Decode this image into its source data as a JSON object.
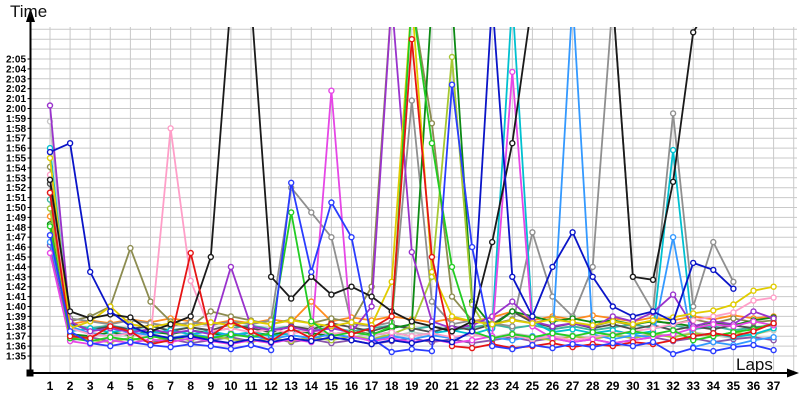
{
  "page": {
    "y_axis_title": "Time",
    "x_axis_title": "Laps"
  },
  "chart_data": {
    "type": "line",
    "title": "",
    "xlabel": "Laps",
    "ylabel": "Time",
    "grid": true,
    "legend": "none",
    "marker": "open-circle",
    "x": [
      1,
      2,
      3,
      4,
      5,
      6,
      7,
      8,
      9,
      10,
      11,
      12,
      13,
      14,
      15,
      16,
      17,
      18,
      19,
      20,
      21,
      22,
      23,
      24,
      25,
      26,
      27,
      28,
      29,
      30,
      31,
      32,
      33,
      34,
      35,
      36,
      37
    ],
    "y_tick_labels": [
      "2:05",
      "2:04",
      "2:03",
      "2:02",
      "2:01",
      "2:00",
      "1:59",
      "1:58",
      "1:57",
      "1:56",
      "1:55",
      "1:54",
      "1:53",
      "1:52",
      "1:51",
      "1:50",
      "1:49",
      "1:48",
      "1:47",
      "1:46",
      "1:45",
      "1:44",
      "1:43",
      "1:42",
      "1:41",
      "1:40",
      "1:39",
      "1:38",
      "1:37",
      "1:36",
      "1:35"
    ],
    "y_top_tick_seconds": 125,
    "y_bottom_tick_seconds": 95,
    "offscale_value": 131,
    "offscale_meaning": "line exits above visible plot area (slower than ~2:08)",
    "values_unit": "seconds (95 = 1:35, 125 = 2:05)",
    "series": [
      {
        "name": "silver",
        "color": "#c6c6c6",
        "values": [
          118.7,
          97.8,
          97.4,
          97,
          97.4,
          97.1,
          97.5,
          97.2,
          96.9,
          97.3,
          97,
          97.4,
          97.1,
          96.8,
          97.2,
          96.9,
          97.3,
          97,
          97.4,
          97.1,
          96.8,
          97.2,
          96.9,
          97.3,
          97,
          96.7,
          97.1,
          96.8,
          97.2,
          96.9,
          97.3,
          97,
          97.4,
          97.1,
          96.8,
          97.2,
          97.6
        ]
      },
      {
        "name": "teal",
        "color": "#3cb4a0",
        "values": [
          110.8,
          98.2,
          97.8,
          98.1,
          97.7,
          98,
          97.6,
          97.9,
          97.5,
          97.8,
          98.1,
          97.7,
          98,
          97.6,
          97.9,
          97.5,
          97.8,
          98.1,
          97.7,
          98,
          97.6,
          97.9,
          98.2,
          97.8,
          98.1,
          97.7,
          98,
          97.6,
          97.9,
          98.2,
          97.8,
          98.1,
          97.7,
          98,
          97.6,
          97.9,
          98.1
        ]
      },
      {
        "name": "orange",
        "color": "#ff8c1e",
        "values": [
          109.1,
          98.2,
          98.6,
          98.3,
          98.7,
          98.4,
          98.8,
          98.5,
          98.2,
          98.6,
          98.3,
          98.7,
          98.4,
          100.5,
          98.5,
          98.9,
          98.6,
          99,
          98.7,
          98.4,
          98.8,
          98.5,
          98.9,
          99.5,
          98.6,
          99,
          98.7,
          99.1,
          98.8,
          98.5,
          98.9,
          98.6,
          99,
          98.7,
          99.1,
          98.8,
          99
        ]
      },
      {
        "name": "plum",
        "color": "#8a55aa",
        "values": [
          106.2,
          96.6,
          96.9,
          96.5,
          96.8,
          96.4,
          96.7,
          96.3,
          96.6,
          96.9,
          96.5,
          96.8,
          96.4,
          96.7,
          96.3,
          96.6,
          96.2,
          96.5,
          96.8,
          96.4,
          96.7,
          96.3,
          96.6,
          96.9,
          96.5,
          96.8,
          96.4,
          96.7,
          96.3,
          96.6,
          96.9,
          96.5,
          96.8,
          96.4,
          96.7,
          96.9,
          96.6
        ]
      },
      {
        "name": "dark-gray",
        "color": "#4d4d4d",
        "values": [
          112.4,
          98.3,
          97.6,
          98,
          97.7,
          98.1,
          97.5,
          97.9,
          97.6,
          98.2,
          97.8,
          97.4,
          98,
          97.7,
          98.3,
          97.9,
          97.5,
          98.1,
          97.8,
          97.4,
          98,
          97.6,
          98.2,
          99.5,
          98.4,
          97.9,
          98.3,
          97.8,
          98.2,
          97.7,
          98.1,
          97.6,
          98,
          97.7,
          98.1,
          97.8,
          98.2
        ]
      },
      {
        "name": "khaki",
        "color": "#8c8c50",
        "values": [
          114.1,
          98.5,
          99,
          100,
          105.9,
          100.5,
          98.5,
          98,
          99.5,
          99,
          98.6,
          98.2,
          98.7,
          98.3,
          98.8,
          98.4,
          102,
          131,
          131,
          118.5,
          101,
          98.6,
          98.2,
          98.7,
          98.3,
          98.8,
          98.4,
          98,
          98.5,
          98.1,
          98.6,
          98.2,
          98.7,
          98.3,
          98.8,
          98.4,
          98.6
        ]
      },
      {
        "name": "gray",
        "color": "#8f8f8f",
        "values": [
          111.5,
          98.8,
          98.5,
          98.2,
          98.6,
          98.3,
          98,
          98.4,
          98.1,
          98.5,
          98.2,
          98.6,
          112,
          109.5,
          107,
          98.3,
          98,
          98.4,
          120.8,
          100.5,
          98.2,
          98.6,
          98.3,
          98,
          107.5,
          101,
          99,
          104,
          131,
          103,
          99.5,
          119.5,
          100,
          106.5,
          102.5,
          null,
          null
        ]
      },
      {
        "name": "dark-green",
        "color": "#0c8a14",
        "values": [
          108.3,
          97.2,
          97,
          97.4,
          97.1,
          97.5,
          97.2,
          97.6,
          97.3,
          97,
          97.4,
          97.1,
          97.6,
          97.3,
          97,
          97.5,
          97.2,
          97.8,
          98.2,
          131,
          131,
          100.5,
          98,
          99.5,
          99,
          98.5,
          98.8,
          98.4,
          98.6,
          98.2,
          98.5,
          98.3,
          98,
          98.4,
          98.1,
          98.6,
          98.9
        ]
      },
      {
        "name": "yellow-green",
        "color": "#a6c832",
        "values": [
          109.9,
          97,
          96.6,
          96.4,
          96.8,
          96.5,
          96.9,
          96.6,
          97,
          96.7,
          96.4,
          96.8,
          96.5,
          96.9,
          96.6,
          97,
          96.7,
          97.2,
          98,
          103,
          125.2,
          100.2,
          96.8,
          97.2,
          96.9,
          96.6,
          97,
          96.7,
          97.1,
          96.8,
          97.2,
          96.9,
          97.3,
          97,
          97.4,
          97.1,
          97.8
        ]
      },
      {
        "name": "cyan",
        "color": "#00c0d0",
        "values": [
          116,
          97.5,
          97.8,
          97.4,
          97.7,
          97.3,
          97.6,
          97.2,
          97.5,
          97.1,
          97.4,
          97,
          97.3,
          97.6,
          97.2,
          97.5,
          97.1,
          97.4,
          97,
          97.3,
          97.6,
          97.2,
          97.8,
          131,
          98.5,
          97.4,
          97.7,
          97.3,
          97.6,
          97.2,
          97.5,
          115.8,
          97,
          97.3,
          96.9,
          97.2,
          97.8
        ]
      },
      {
        "name": "light-blue",
        "color": "#3399ff",
        "values": [
          106.5,
          98,
          97.3,
          97,
          97.4,
          97.1,
          96.8,
          97.2,
          96.9,
          97.3,
          97,
          96.7,
          97.1,
          96.8,
          97.2,
          96.9,
          96.6,
          97,
          96.7,
          97.1,
          96.8,
          97.2,
          96.9,
          96.6,
          97,
          96.8,
          131,
          97.2,
          96.7,
          97.1,
          96.9,
          107,
          95.9,
          96.4,
          96.1,
          96.6,
          96.9
        ]
      },
      {
        "name": "pink",
        "color": "#ff9ec8",
        "values": [
          113.3,
          97.8,
          97.2,
          97,
          97.3,
          96.8,
          118,
          102.6,
          97.5,
          97.8,
          97.4,
          97.7,
          97.3,
          97.6,
          97.2,
          97.5,
          97.1,
          97.4,
          97,
          97.3,
          96.9,
          97.2,
          96.8,
          97.1,
          96.7,
          97,
          96.6,
          96.9,
          97.2,
          97.5,
          97.8,
          98.2,
          98.6,
          99,
          99.4,
          100.6,
          100.9
        ]
      },
      {
        "name": "purple",
        "color": "#9932cc",
        "values": [
          120.3,
          98.5,
          97.5,
          97.8,
          97.4,
          97.7,
          97.3,
          97.6,
          97.2,
          104,
          98,
          97.6,
          97.9,
          97.5,
          97.8,
          97.4,
          100,
          131,
          105.5,
          98.5,
          97.8,
          98.1,
          99,
          100.5,
          98.5,
          98,
          98.3,
          97.9,
          99,
          98.5,
          99.4,
          101.2,
          98,
          98.5,
          98.2,
          99.5,
          98.8
        ]
      },
      {
        "name": "magenta",
        "color": "#e646e6",
        "values": [
          105.4,
          96.5,
          96.2,
          96.6,
          96.3,
          96.7,
          96.4,
          96.8,
          96.5,
          96.2,
          96.6,
          96.3,
          96.7,
          96.4,
          121.8,
          97,
          96.5,
          96.8,
          96.4,
          96.7,
          96.3,
          96.6,
          97,
          123.7,
          98,
          96.8,
          96.4,
          96.7,
          96.3,
          96.6,
          96.9,
          97.2,
          97.8,
          98.2,
          98,
          98.5,
          98.1
        ]
      },
      {
        "name": "yellow",
        "color": "#e0cc00",
        "values": [
          115,
          97.8,
          98.5,
          100,
          98.2,
          97.9,
          98.3,
          98,
          98.4,
          98.1,
          98.5,
          98.2,
          98.6,
          98.3,
          98,
          98.4,
          98.1,
          102.5,
          131,
          103.5,
          99,
          98.5,
          98.2,
          98.6,
          98.3,
          98.7,
          98.4,
          98.1,
          98.5,
          98.2,
          98.6,
          98.9,
          99.3,
          99.6,
          100.2,
          101.6,
          102
        ]
      },
      {
        "name": "green",
        "color": "#22cc22",
        "values": [
          108.1,
          96.8,
          96.5,
          96.9,
          96.6,
          97,
          96.7,
          97.1,
          96.8,
          97.2,
          96.9,
          97.3,
          109.5,
          98.5,
          97,
          97.4,
          97.1,
          98,
          131,
          116.5,
          104,
          97.5,
          96.8,
          97.2,
          96.9,
          97.3,
          97,
          97.4,
          97.1,
          97.5,
          97.2,
          97.6,
          96.6,
          97,
          97.4,
          97.7,
          98.3
        ]
      },
      {
        "name": "black",
        "color": "#1a1a1a",
        "values": [
          112.8,
          99.5,
          98.8,
          99.2,
          98.9,
          97.5,
          98.2,
          99,
          105,
          131,
          131,
          103,
          100.8,
          103,
          101.2,
          102,
          101,
          99.5,
          98.5,
          98,
          97.5,
          98.5,
          106.5,
          116.5,
          131,
          131,
          131,
          131,
          131,
          103,
          102.7,
          112.6,
          127.7,
          131,
          null,
          null,
          null
        ]
      },
      {
        "name": "red",
        "color": "#e61414",
        "values": [
          111.5,
          97,
          96.8,
          98,
          97.5,
          96.2,
          96.6,
          105.4,
          97,
          98.5,
          97.5,
          96.5,
          97.8,
          96.8,
          98.2,
          97.2,
          97.8,
          99,
          127,
          105,
          96,
          95.8,
          96.2,
          95.8,
          96,
          96.3,
          95.9,
          96.2,
          96,
          96.4,
          96.2,
          96.6,
          97,
          97.3,
          97,
          97.5,
          98.3
        ]
      },
      {
        "name": "blue",
        "color": "#2a3cff",
        "values": [
          107.2,
          97.5,
          96.3,
          96,
          96.4,
          96.1,
          95.9,
          96.2,
          96,
          95.7,
          96.1,
          95.6,
          112.5,
          103.5,
          110.5,
          107,
          96.8,
          95.4,
          95.7,
          95.5,
          122.4,
          106,
          96,
          95.7,
          96.1,
          95.8,
          96.2,
          95.9,
          96.3,
          96,
          96.4,
          95.2,
          95.8,
          95.5,
          95.9,
          96.1,
          95.6
        ]
      },
      {
        "name": "navy",
        "color": "#0a14c8",
        "values": [
          115.6,
          116.5,
          103.5,
          99.5,
          98,
          97.2,
          96.8,
          97,
          96.6,
          96.3,
          96.7,
          96.4,
          96.8,
          96.5,
          96.9,
          96.6,
          96.2,
          96.6,
          96.3,
          96.7,
          96.4,
          97.5,
          131,
          103,
          99,
          104,
          107.5,
          103,
          100,
          99,
          99.5,
          98.5,
          104.4,
          103.7,
          101.8,
          null,
          null
        ]
      }
    ]
  }
}
